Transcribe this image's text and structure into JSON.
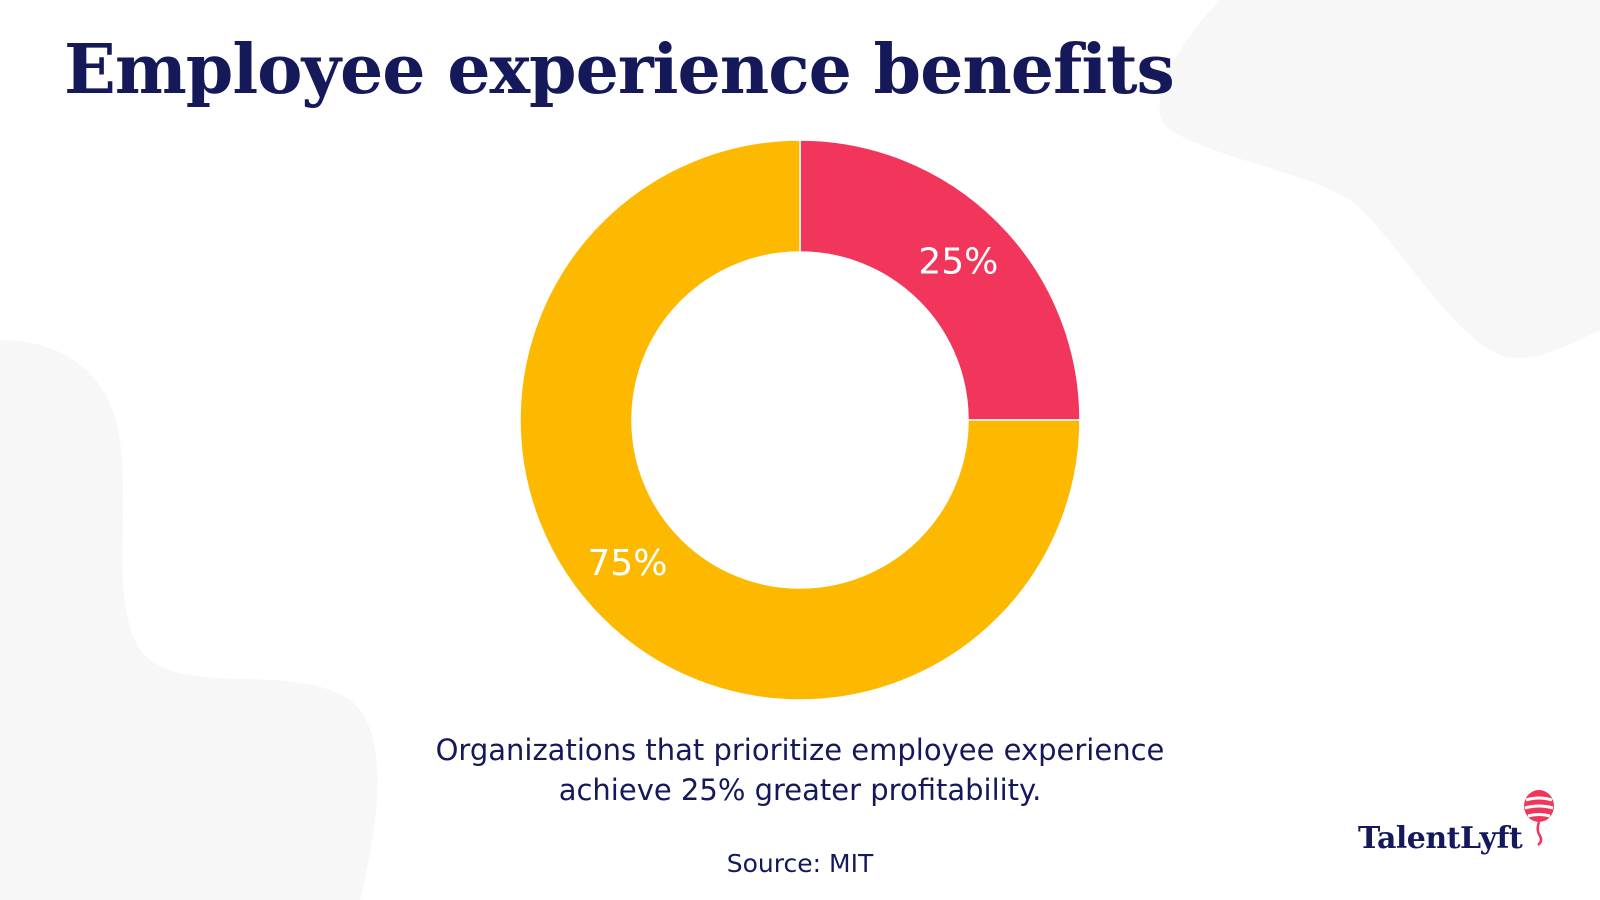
{
  "title": "Employee experience benefits",
  "caption": {
    "line1": "Organizations that prioritize employee experience",
    "line2": "achieve 25% greater profitability."
  },
  "source": "Source: MIT",
  "logo": {
    "text": "TalentLyft",
    "icon": "balloon-icon"
  },
  "colors": {
    "title": "#15195a",
    "accent_red": "#f2355b",
    "accent_yellow": "#fdb900",
    "background_shape": "#f7f7f7"
  },
  "chart_data": {
    "type": "pie",
    "variant": "donut",
    "slices": [
      {
        "label": "25%",
        "value": 25,
        "color": "#f2355b"
      },
      {
        "label": "75%",
        "value": 75,
        "color": "#fdb900"
      }
    ]
  }
}
